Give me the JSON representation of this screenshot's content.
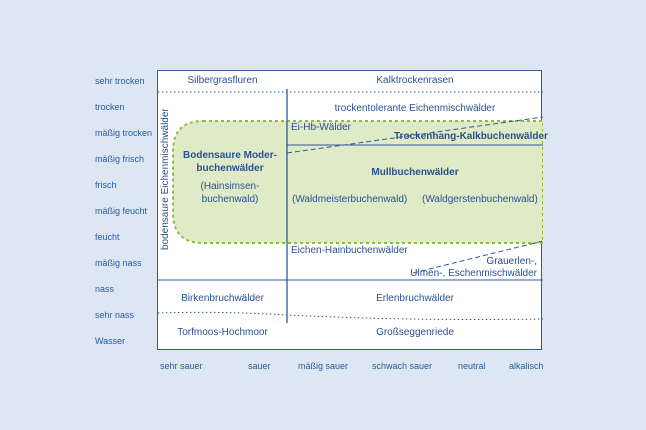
{
  "moisture_levels": [
    "sehr trocken",
    "trocken",
    "mäßig trocken",
    "mäßig frisch",
    "frisch",
    "mäßig feucht",
    "feucht",
    "mäßig nass",
    "nass",
    "sehr nass",
    "Wasser"
  ],
  "acidity_levels": [
    "sehr sauer",
    "sauer",
    "mäßig sauer",
    "schwach sauer",
    "neutral",
    "alkalisch"
  ],
  "zones": {
    "silbergrasfluren": "Silbergrasfluren",
    "kalktrockenrasen": "Kalktrockenrasen",
    "trockentolerante": "trockentolerante Eichenmischwälder",
    "ei_hb": "Ei-Hb-Wälder",
    "trockenhang": "Trockenhang-Kalkbuchenwälder",
    "bodensaure_eichen": "bodensaure Eichenmischwälder",
    "moder_1": "Bodensaure Moder-",
    "moder_2": "buchenwälder",
    "hainsimsen_1": "(Hainsimsen-",
    "hainsimsen_2": "buchenwald)",
    "mull": "Mullbuchenwälder",
    "waldmeister": "(Waldmeisterbuchenwald)",
    "waldgersten": "(Waldgerstenbuchenwald)",
    "eichen_hain": "Eichen-Hainbuchenwälder",
    "grauerlen_1": "Grauerlen-,",
    "grauerlen_2": "Ulmen-, Eschenmischwälder",
    "birkenbruch": "Birkenbruchwälder",
    "erlenbruch": "Erlenbruchwälder",
    "torfmoos": "Torfmoos-Hochmoor",
    "grossseggen": "Großseggenriede"
  },
  "colors": {
    "background": "#dde7f3",
    "text": "#2a5191",
    "frame": "#2f5a96",
    "buchen_fill": "#dfeac6",
    "buchen_border": "#8dbb3e"
  }
}
